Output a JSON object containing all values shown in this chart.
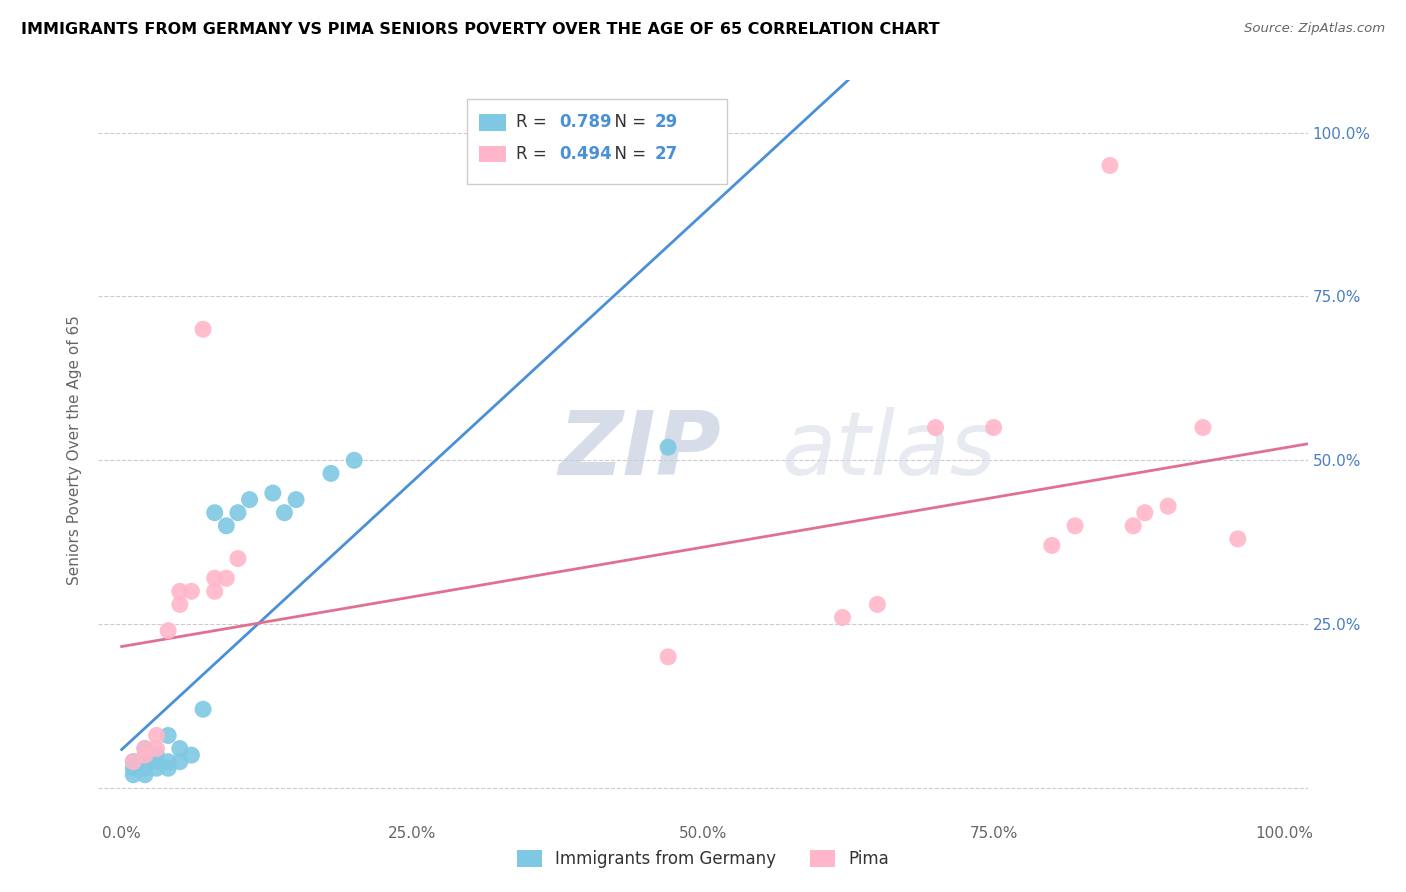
{
  "title": "IMMIGRANTS FROM GERMANY VS PIMA SENIORS POVERTY OVER THE AGE OF 65 CORRELATION CHART",
  "source": "Source: ZipAtlas.com",
  "ylabel": "Seniors Poverty Over the Age of 65",
  "xlim": [
    -0.02,
    1.02
  ],
  "ylim": [
    -0.05,
    1.08
  ],
  "xticks": [
    0.0,
    0.25,
    0.5,
    0.75,
    1.0
  ],
  "xticklabels": [
    "0.0%",
    "25.0%",
    "50.0%",
    "75.0%",
    "100.0%"
  ],
  "yticks": [
    0.0,
    0.25,
    0.5,
    0.75,
    1.0
  ],
  "yticklabels": [
    "",
    "25.0%",
    "50.0%",
    "75.0%",
    "100.0%"
  ],
  "blue_R": "0.789",
  "blue_N": "29",
  "pink_R": "0.494",
  "pink_N": "27",
  "blue_color": "#7ec8e3",
  "pink_color": "#ffb6c8",
  "blue_line_color": "#4a90d9",
  "pink_line_color": "#e07090",
  "legend_label_blue": "Immigrants from Germany",
  "legend_label_pink": "Pima",
  "watermark_zip": "ZIP",
  "watermark_atlas": "atlas",
  "blue_scatter_x": [
    0.01,
    0.01,
    0.01,
    0.02,
    0.02,
    0.02,
    0.02,
    0.02,
    0.02,
    0.03,
    0.03,
    0.03,
    0.04,
    0.04,
    0.04,
    0.05,
    0.05,
    0.06,
    0.07,
    0.08,
    0.09,
    0.1,
    0.11,
    0.13,
    0.14,
    0.15,
    0.18,
    0.2,
    0.47
  ],
  "blue_scatter_y": [
    0.02,
    0.03,
    0.04,
    0.02,
    0.03,
    0.04,
    0.04,
    0.05,
    0.06,
    0.03,
    0.04,
    0.05,
    0.03,
    0.04,
    0.08,
    0.04,
    0.06,
    0.05,
    0.12,
    0.42,
    0.4,
    0.42,
    0.44,
    0.45,
    0.42,
    0.44,
    0.48,
    0.5,
    0.52
  ],
  "pink_scatter_x": [
    0.01,
    0.02,
    0.02,
    0.03,
    0.03,
    0.04,
    0.05,
    0.05,
    0.06,
    0.07,
    0.08,
    0.08,
    0.09,
    0.1,
    0.47,
    0.62,
    0.65,
    0.7,
    0.75,
    0.8,
    0.82,
    0.85,
    0.87,
    0.88,
    0.9,
    0.93,
    0.96
  ],
  "pink_scatter_y": [
    0.04,
    0.05,
    0.06,
    0.06,
    0.08,
    0.24,
    0.28,
    0.3,
    0.3,
    0.7,
    0.3,
    0.32,
    0.32,
    0.35,
    0.2,
    0.26,
    0.28,
    0.55,
    0.55,
    0.37,
    0.4,
    0.95,
    0.4,
    0.42,
    0.43,
    0.55,
    0.38
  ]
}
